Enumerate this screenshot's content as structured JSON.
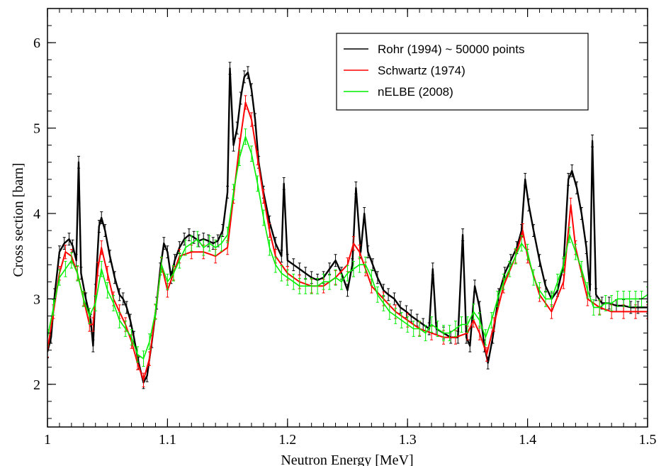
{
  "chart_data": {
    "type": "line",
    "xlabel": "Neutron Energy [MeV]",
    "ylabel": "Cross section [barn]",
    "xlim": [
      1.0,
      1.5
    ],
    "ylim": [
      1.5,
      6.4
    ],
    "x_ticks": [
      1,
      1.1,
      1.2,
      1.3,
      1.4,
      1.5
    ],
    "x_tick_labels": [
      "1",
      "1.1",
      "1.2",
      "1.3",
      "1.4",
      "1.5"
    ],
    "y_ticks": [
      2,
      3,
      4,
      5,
      6
    ],
    "y_tick_labels": [
      "2",
      "3",
      "4",
      "5",
      "6"
    ],
    "grid": false,
    "legend_position": "top-right",
    "series": [
      {
        "name": "Rohr (1994) ~ 50000 points",
        "color": "#000000",
        "style": "dense points with error bars",
        "x": [
          1.0,
          1.003,
          1.006,
          1.01,
          1.014,
          1.018,
          1.021,
          1.024,
          1.026,
          1.028,
          1.032,
          1.036,
          1.038,
          1.04,
          1.043,
          1.045,
          1.048,
          1.052,
          1.056,
          1.06,
          1.063,
          1.066,
          1.069,
          1.072,
          1.076,
          1.08,
          1.083,
          1.087,
          1.091,
          1.094,
          1.097,
          1.1,
          1.103,
          1.106,
          1.11,
          1.114,
          1.118,
          1.122,
          1.126,
          1.13,
          1.134,
          1.138,
          1.142,
          1.146,
          1.15,
          1.152,
          1.155,
          1.158,
          1.161,
          1.164,
          1.167,
          1.17,
          1.173,
          1.176,
          1.18,
          1.185,
          1.19,
          1.195,
          1.197,
          1.2,
          1.205,
          1.21,
          1.215,
          1.22,
          1.225,
          1.23,
          1.235,
          1.24,
          1.245,
          1.25,
          1.254,
          1.257,
          1.261,
          1.264,
          1.267,
          1.271,
          1.275,
          1.28,
          1.284,
          1.289,
          1.294,
          1.299,
          1.303,
          1.308,
          1.313,
          1.318,
          1.321,
          1.324,
          1.33,
          1.336,
          1.342,
          1.346,
          1.349,
          1.352,
          1.356,
          1.36,
          1.364,
          1.367,
          1.371,
          1.376,
          1.381,
          1.386,
          1.391,
          1.395,
          1.398,
          1.401,
          1.405,
          1.41,
          1.415,
          1.42,
          1.425,
          1.43,
          1.434,
          1.437,
          1.441,
          1.445,
          1.449,
          1.452,
          1.454,
          1.457,
          1.462,
          1.468,
          1.474,
          1.48,
          1.486,
          1.492,
          1.5
        ],
        "y": [
          2.38,
          2.55,
          3.05,
          3.55,
          3.65,
          3.7,
          3.62,
          3.45,
          4.6,
          3.3,
          3.0,
          2.75,
          2.45,
          3.1,
          3.85,
          3.95,
          3.8,
          3.5,
          3.25,
          3.05,
          3.0,
          2.9,
          2.75,
          2.55,
          2.25,
          2.02,
          2.1,
          2.5,
          2.95,
          3.35,
          3.65,
          3.55,
          3.25,
          3.45,
          3.6,
          3.7,
          3.75,
          3.72,
          3.68,
          3.7,
          3.68,
          3.65,
          3.68,
          3.8,
          4.25,
          5.7,
          4.8,
          5.0,
          5.35,
          5.6,
          5.65,
          5.45,
          5.1,
          4.6,
          4.25,
          3.9,
          3.65,
          3.5,
          4.35,
          3.45,
          3.4,
          3.35,
          3.3,
          3.25,
          3.22,
          3.25,
          3.35,
          3.45,
          3.3,
          3.1,
          3.4,
          4.3,
          3.55,
          4.0,
          3.55,
          3.4,
          3.25,
          3.1,
          3.05,
          3.0,
          2.9,
          2.85,
          2.8,
          2.75,
          2.7,
          2.65,
          3.35,
          2.65,
          2.6,
          2.55,
          2.55,
          3.75,
          2.55,
          2.45,
          3.15,
          2.9,
          2.45,
          2.25,
          2.55,
          3.05,
          3.3,
          3.45,
          3.6,
          3.8,
          4.4,
          4.1,
          3.8,
          3.45,
          3.15,
          3.0,
          3.1,
          3.4,
          4.4,
          4.5,
          4.3,
          4.0,
          3.6,
          3.1,
          4.85,
          3.05,
          2.95,
          2.95,
          2.92,
          2.92,
          2.9,
          2.9,
          2.9
        ]
      },
      {
        "name": "Schwartz (1974)",
        "color": "#ff0000",
        "style": "points with error bars",
        "x": [
          1.0,
          1.005,
          1.01,
          1.015,
          1.02,
          1.025,
          1.03,
          1.035,
          1.038,
          1.042,
          1.045,
          1.05,
          1.055,
          1.06,
          1.065,
          1.07,
          1.075,
          1.08,
          1.085,
          1.09,
          1.095,
          1.1,
          1.105,
          1.11,
          1.12,
          1.13,
          1.14,
          1.15,
          1.155,
          1.16,
          1.165,
          1.17,
          1.175,
          1.18,
          1.185,
          1.19,
          1.2,
          1.21,
          1.22,
          1.23,
          1.24,
          1.25,
          1.255,
          1.26,
          1.265,
          1.27,
          1.28,
          1.29,
          1.3,
          1.31,
          1.32,
          1.33,
          1.34,
          1.35,
          1.355,
          1.36,
          1.366,
          1.372,
          1.38,
          1.39,
          1.396,
          1.4,
          1.41,
          1.42,
          1.43,
          1.436,
          1.44,
          1.45,
          1.46,
          1.47,
          1.48,
          1.49,
          1.5
        ],
        "y": [
          2.4,
          2.85,
          3.3,
          3.55,
          3.5,
          3.3,
          3.0,
          2.7,
          2.7,
          3.35,
          3.6,
          3.3,
          3.0,
          2.85,
          2.7,
          2.5,
          2.25,
          2.05,
          2.3,
          2.85,
          3.4,
          3.1,
          3.3,
          3.5,
          3.55,
          3.55,
          3.5,
          3.6,
          4.2,
          4.8,
          5.3,
          5.1,
          4.65,
          4.2,
          3.8,
          3.5,
          3.3,
          3.2,
          3.15,
          3.15,
          3.25,
          3.4,
          3.65,
          3.55,
          3.35,
          3.15,
          3.0,
          2.85,
          2.75,
          2.65,
          2.6,
          2.55,
          2.55,
          2.6,
          2.75,
          2.6,
          2.35,
          2.7,
          3.15,
          3.5,
          3.8,
          3.5,
          3.05,
          2.85,
          3.2,
          4.1,
          3.6,
          3.0,
          2.9,
          2.85,
          2.85,
          2.85,
          2.85
        ]
      },
      {
        "name": "nELBE (2008)",
        "color": "#00ee00",
        "style": "line with error bars",
        "x": [
          1.0,
          1.005,
          1.01,
          1.015,
          1.02,
          1.025,
          1.03,
          1.035,
          1.04,
          1.045,
          1.05,
          1.055,
          1.06,
          1.065,
          1.07,
          1.075,
          1.08,
          1.085,
          1.09,
          1.095,
          1.1,
          1.105,
          1.11,
          1.115,
          1.12,
          1.125,
          1.13,
          1.135,
          1.14,
          1.145,
          1.15,
          1.155,
          1.16,
          1.165,
          1.17,
          1.175,
          1.18,
          1.185,
          1.19,
          1.195,
          1.2,
          1.205,
          1.21,
          1.215,
          1.22,
          1.225,
          1.23,
          1.235,
          1.24,
          1.245,
          1.25,
          1.255,
          1.26,
          1.265,
          1.27,
          1.275,
          1.28,
          1.285,
          1.29,
          1.295,
          1.3,
          1.305,
          1.31,
          1.315,
          1.32,
          1.325,
          1.33,
          1.335,
          1.34,
          1.345,
          1.35,
          1.355,
          1.36,
          1.365,
          1.37,
          1.375,
          1.38,
          1.385,
          1.39,
          1.395,
          1.4,
          1.405,
          1.41,
          1.415,
          1.42,
          1.425,
          1.43,
          1.435,
          1.44,
          1.445,
          1.45,
          1.455,
          1.46,
          1.465,
          1.47,
          1.475,
          1.48,
          1.485,
          1.49,
          1.495,
          1.5
        ],
        "y": [
          2.55,
          2.9,
          3.25,
          3.35,
          3.45,
          3.3,
          3.0,
          2.8,
          2.95,
          3.35,
          3.1,
          2.95,
          2.75,
          2.65,
          2.55,
          2.35,
          2.3,
          2.5,
          2.85,
          3.4,
          3.2,
          3.3,
          3.45,
          3.6,
          3.65,
          3.7,
          3.6,
          3.65,
          3.6,
          3.65,
          3.75,
          4.25,
          4.65,
          4.9,
          4.7,
          4.35,
          3.95,
          3.6,
          3.4,
          3.3,
          3.25,
          3.2,
          3.15,
          3.15,
          3.15,
          3.15,
          3.2,
          3.2,
          3.25,
          3.2,
          3.3,
          3.35,
          3.4,
          3.4,
          3.25,
          3.05,
          2.95,
          2.85,
          2.8,
          2.75,
          2.7,
          2.65,
          2.65,
          2.6,
          2.7,
          2.65,
          2.6,
          2.6,
          2.65,
          2.7,
          2.7,
          2.85,
          2.75,
          2.55,
          2.75,
          3.0,
          3.2,
          3.35,
          3.5,
          3.65,
          3.55,
          3.25,
          3.1,
          3.0,
          3.0,
          3.2,
          3.4,
          3.75,
          3.55,
          3.35,
          3.1,
          2.9,
          2.9,
          2.95,
          2.95,
          3.0,
          3.0,
          3.0,
          3.0,
          3.0,
          3.05
        ]
      }
    ]
  }
}
